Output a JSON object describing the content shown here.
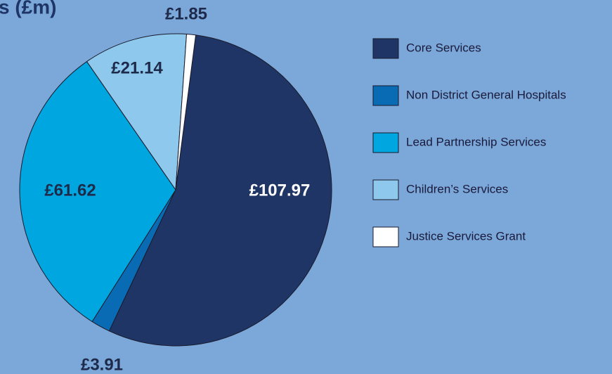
{
  "chart_data": {
    "type": "pie",
    "title": "s (£m)",
    "categories": [
      "Core Services",
      "Non District General Hospitals",
      "Lead Partnership Services",
      "Children’s Services",
      "Justice Services Grant"
    ],
    "values": [
      107.97,
      3.91,
      61.62,
      21.14,
      1.85
    ],
    "value_labels": [
      "£107.97",
      "£3.91",
      "£61.62",
      "£21.14",
      "£1.85"
    ],
    "colors": [
      "#1e3566",
      "#0a6bb5",
      "#00a6e0",
      "#8ec8ec",
      "#ffffff"
    ],
    "legend": "right"
  }
}
